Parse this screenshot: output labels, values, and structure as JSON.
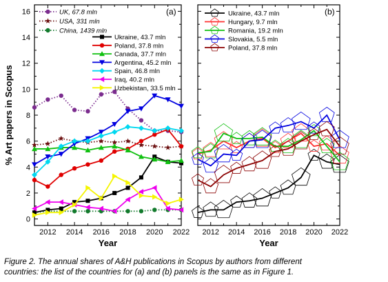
{
  "caption": {
    "line1": "Figure 2. The annual shares of A&H publications in Scopus by authors from different",
    "line2": "countries: the list of the countries for (a) and (b) panels is the same as in Figure 1."
  },
  "chart_data": [
    {
      "type": "line",
      "panel": "(a)",
      "xlabel": "Year",
      "ylabel": "% Art papers in Scopus",
      "xlim": [
        2011,
        2022
      ],
      "ylim": [
        -0.5,
        16.5
      ],
      "xticks": [
        2012,
        2014,
        2016,
        2018,
        2020,
        2022
      ],
      "yticks": [
        0,
        2,
        4,
        6,
        8,
        10,
        12,
        14,
        16
      ],
      "x": [
        2011,
        2012,
        2013,
        2014,
        2015,
        2016,
        2017,
        2018,
        2019,
        2020,
        2021,
        2022
      ],
      "legend_top": "top-left",
      "legend_main": "upper-right",
      "series": [
        {
          "name": "UK, 67.8 mln",
          "italic": true,
          "color": "#7b2c8e",
          "marker": "circle",
          "dash": "dotted",
          "legend": "top",
          "values": [
            8.6,
            9.2,
            9.5,
            8.4,
            8.3,
            9.6,
            9.8,
            8.5,
            7.6,
            6.8,
            6.8,
            6.7
          ]
        },
        {
          "name": "USA, 331 mln",
          "italic": true,
          "color": "#6b0f0f",
          "marker": "star",
          "dash": "dotted",
          "legend": "top",
          "values": [
            5.7,
            5.8,
            6.2,
            6.0,
            5.9,
            6.0,
            5.9,
            6.0,
            5.7,
            5.6,
            5.5,
            5.6
          ]
        },
        {
          "name": "China, 1439 mln",
          "italic": true,
          "color": "#127a2c",
          "marker": "circle",
          "dash": "dotted",
          "legend": "top",
          "values": [
            0.5,
            0.6,
            0.6,
            0.6,
            0.6,
            0.6,
            0.6,
            0.6,
            0.6,
            0.7,
            0.7,
            0.7
          ]
        },
        {
          "name": "Ukraine, 43.7 mln",
          "color": "#000000",
          "marker": "square",
          "legend": "main",
          "values": [
            0.5,
            0.7,
            0.8,
            1.3,
            1.4,
            1.6,
            2.0,
            2.4,
            3.2,
            4.8,
            4.4,
            4.3
          ]
        },
        {
          "name": "Poland, 37.8 mln",
          "color": "#e00000",
          "marker": "circle",
          "legend": "main",
          "values": [
            3.0,
            2.5,
            3.4,
            3.9,
            4.2,
            4.5,
            5.2,
            5.4,
            6.0,
            6.5,
            6.9,
            5.6
          ]
        },
        {
          "name": "Canada, 37.7 mln",
          "color": "#10c010",
          "marker": "triangle",
          "legend": "main",
          "values": [
            5.4,
            5.4,
            5.5,
            5.5,
            5.3,
            5.5,
            5.6,
            5.3,
            4.8,
            4.6,
            4.4,
            4.5
          ]
        },
        {
          "name": "Argentina, 45.2 mln",
          "color": "#0000e0",
          "marker": "triangle-down",
          "legend": "main",
          "values": [
            4.2,
            4.8,
            5.0,
            5.8,
            6.2,
            6.7,
            7.3,
            8.3,
            8.5,
            9.5,
            9.2,
            8.7
          ]
        },
        {
          "name": "Spain, 46.8 mln",
          "color": "#00d8f0",
          "marker": "diamond",
          "legend": "main",
          "values": [
            3.4,
            4.4,
            5.6,
            6.0,
            6.0,
            6.4,
            6.7,
            7.1,
            7.0,
            6.8,
            7.0,
            6.8
          ]
        },
        {
          "name": "Iraq, 40.2 mln",
          "color": "#ee00ee",
          "marker": "triangle-left",
          "legend": "main",
          "values": [
            0.8,
            1.3,
            1.3,
            1.1,
            0.9,
            0.8,
            0.6,
            1.5,
            2.1,
            2.4,
            0.8,
            0.7
          ]
        },
        {
          "name": "Uzbekistan, 33.5 mln",
          "color": "#f5f500",
          "marker": "triangle-right",
          "legend": "main",
          "values": [
            0.3,
            0.5,
            0.5,
            1.1,
            2.4,
            1.6,
            3.3,
            2.8,
            1.8,
            1.7,
            1.2,
            1.5
          ]
        }
      ]
    },
    {
      "type": "line",
      "panel": "(b)",
      "xlabel": "Year",
      "ylabel": "",
      "xlim": [
        2011,
        2022
      ],
      "ylim": [
        -0.5,
        16.5
      ],
      "xticks": [
        2012,
        2014,
        2016,
        2018,
        2020,
        2022
      ],
      "yticks": [],
      "x": [
        2011,
        2012,
        2013,
        2014,
        2015,
        2016,
        2017,
        2018,
        2019,
        2020,
        2021,
        2022
      ],
      "legend": "upper-left",
      "series": [
        {
          "name": "Ukraine, 43.7 mln",
          "color": "#000000",
          "values": [
            0.5,
            0.7,
            0.7,
            1.3,
            1.4,
            1.6,
            2.0,
            2.4,
            3.2,
            4.9,
            4.4,
            4.2
          ]
        },
        {
          "name": "Hungary, 9.7 mln",
          "color": "#ff3030",
          "values": [
            5.0,
            5.3,
            6.0,
            5.5,
            6.0,
            6.2,
            5.5,
            6.0,
            6.6,
            5.6,
            5.8,
            4.9
          ]
        },
        {
          "name": "Romania, 19.2 mln",
          "color": "#10c010",
          "values": [
            5.1,
            5.2,
            6.6,
            6.2,
            6.2,
            6.3,
            5.6,
            5.6,
            6.1,
            6.8,
            5.6,
            4.4
          ]
        },
        {
          "name": "Slovakia, 5.5 mln",
          "color": "#0000e0",
          "values": [
            4.6,
            4.1,
            5.0,
            4.9,
            6.0,
            6.1,
            7.0,
            7.2,
            7.5,
            7.0,
            8.0,
            6.1
          ]
        },
        {
          "name": "Poland, 37.8 mln",
          "color": "#8b0000",
          "values": [
            3.0,
            2.5,
            3.4,
            3.9,
            4.2,
            4.5,
            5.2,
            5.4,
            6.0,
            6.5,
            6.9,
            5.6
          ]
        }
      ]
    }
  ]
}
